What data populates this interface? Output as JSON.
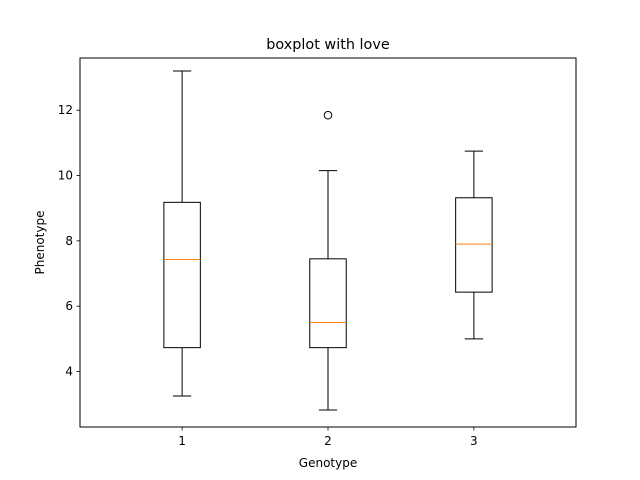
{
  "chart_data": {
    "type": "box",
    "title": "boxplot with love",
    "xlabel": "Genotype",
    "ylabel": "Phenotype",
    "categories": [
      "1",
      "2",
      "3"
    ],
    "ylim": [
      2.3,
      13.6
    ],
    "yticks": [
      4,
      6,
      8,
      10,
      12
    ],
    "grid": false,
    "boxes": [
      {
        "category": "1",
        "whisker_low": 3.25,
        "q1": 4.73,
        "median": 7.43,
        "q3": 9.18,
        "whisker_high": 13.2,
        "outliers": []
      },
      {
        "category": "2",
        "whisker_low": 2.82,
        "q1": 4.73,
        "median": 5.5,
        "q3": 7.45,
        "whisker_high": 10.15,
        "outliers": [
          11.85
        ]
      },
      {
        "category": "3",
        "whisker_low": 5.0,
        "q1": 6.43,
        "median": 7.9,
        "q3": 9.32,
        "whisker_high": 10.75,
        "outliers": []
      }
    ],
    "colors": {
      "box": "#000000",
      "median": "#ff7f0e"
    }
  }
}
